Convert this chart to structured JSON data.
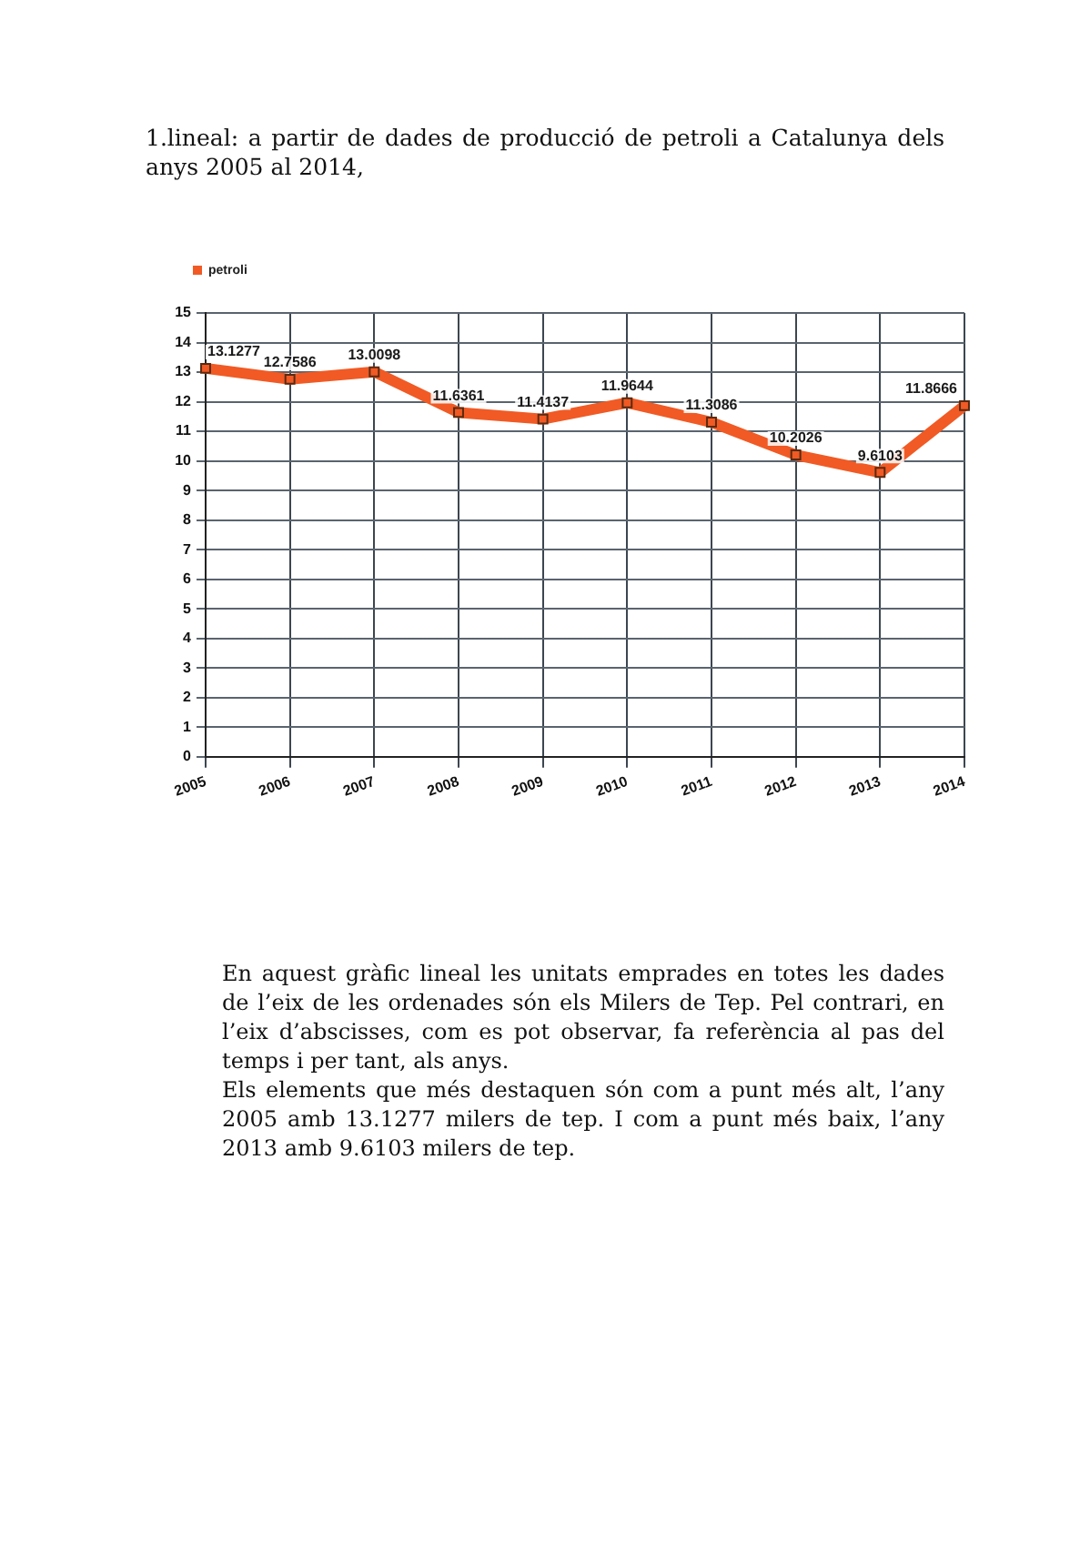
{
  "chart_data": {
    "type": "line",
    "title": "1.lineal: a partir de dades de producció de petroli a Catalunya dels anys 2005 al 2014,",
    "categories": [
      "2005",
      "2006",
      "2007",
      "2008",
      "2009",
      "2010",
      "2011",
      "2012",
      "2013",
      "2014"
    ],
    "series": [
      {
        "name": "petroli",
        "color": "#f15a24",
        "values": [
          13.1277,
          12.7586,
          13.0098,
          11.6361,
          11.4137,
          11.9644,
          11.3086,
          10.2026,
          9.6103,
          11.8666
        ]
      }
    ],
    "ylim": [
      0,
      15
    ],
    "yticks": [
      0,
      1,
      2,
      3,
      4,
      5,
      6,
      7,
      8,
      9,
      10,
      11,
      12,
      13,
      14,
      15
    ],
    "grid": true,
    "legend": "top left",
    "marker": "square",
    "line_style": "solid",
    "data_labels": true,
    "annotations": [
      "En aquest gràfic lineal les unitats emprades en totes les dades de l’eix de les ordenades són els Milers de Tep. Pel contrari, en l’eix d’abscisses, com es pot observar, fa referència al pas del temps i per tant, als anys.",
      "Els elements que més destaquen són com a punt més alt, l’any 2005 amb 13.1277 milers de tep. I com a punt més baix, l’any 2013 amb 9.6103 milers de tep."
    ]
  }
}
